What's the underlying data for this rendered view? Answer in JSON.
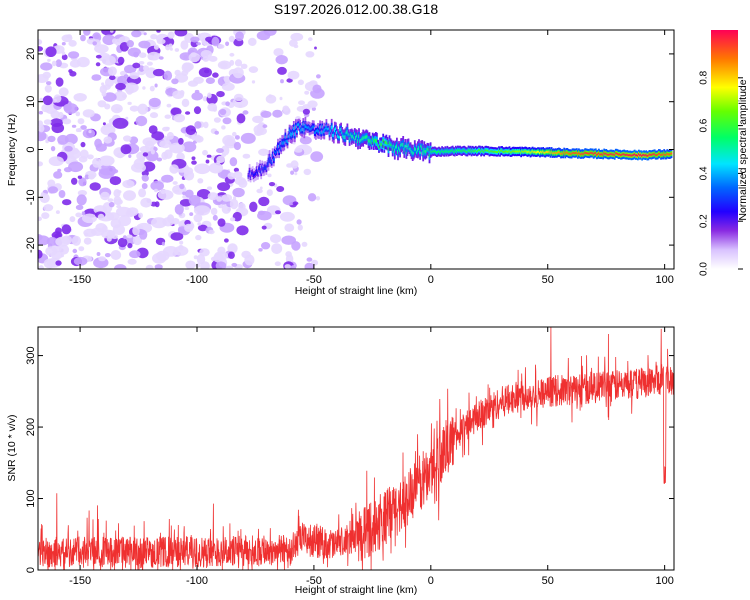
{
  "title": "S197.2026.012.00.38.G18",
  "chart_data": [
    {
      "type": "heatmap",
      "panel": "spectrogram",
      "xlabel": "Height of straight line (km)",
      "ylabel": "Frequency (Hz)",
      "xlim": [
        -168,
        104
      ],
      "ylim": [
        -25,
        25
      ],
      "xticks": [
        -150,
        -100,
        -50,
        0,
        50,
        100
      ],
      "yticks": [
        20,
        10,
        0,
        -10,
        -20
      ],
      "xtick_labels": [
        "-150",
        "-100",
        "-50",
        "0",
        "50",
        "100"
      ],
      "ytick_labels": [
        "20",
        "10",
        "0",
        "-10",
        "-20"
      ],
      "colorbar": {
        "label": "Normalized spectral amplitude",
        "range": [
          0,
          1
        ],
        "ticks": [
          0.0,
          0.2,
          0.4,
          0.6,
          0.8
        ],
        "tick_labels": [
          "0.0",
          "0.2",
          "0.4",
          "0.6",
          "0.8"
        ]
      },
      "ridge": {
        "x": [
          -75,
          -70,
          -65,
          -60,
          -55,
          -50,
          -45,
          -40,
          -35,
          -30,
          -25,
          -20,
          -15,
          -10,
          -5,
          0,
          10,
          20,
          30,
          40,
          50,
          60,
          70,
          80,
          90,
          100
        ],
        "freq": [
          -5,
          -3,
          0,
          3.5,
          5,
          4,
          4,
          3.5,
          3,
          2.5,
          1.5,
          1,
          0.5,
          0,
          0,
          -0.5,
          -0.3,
          -0.3,
          -0.4,
          -0.5,
          -0.6,
          -0.8,
          -0.9,
          -1.0,
          -1.2,
          -1.0
        ],
        "amplitude": [
          0.25,
          0.3,
          0.35,
          0.4,
          0.4,
          0.35,
          0.4,
          0.45,
          0.5,
          0.5,
          0.55,
          0.6,
          0.5,
          0.5,
          0.5,
          0.55,
          0.55,
          0.6,
          0.65,
          0.7,
          0.8,
          0.9,
          0.95,
          0.95,
          1.0,
          0.9
        ]
      },
      "noise_region": [
        -168,
        -48
      ]
    },
    {
      "type": "line",
      "panel": "snr",
      "xlabel": "Height of straight line (km)",
      "ylabel": "SNR (10 * v/v)",
      "xlim": [
        -168,
        104
      ],
      "ylim": [
        0,
        340
      ],
      "xticks": [
        -150,
        -100,
        -50,
        0,
        50,
        100
      ],
      "yticks": [
        0,
        100,
        200,
        300
      ],
      "xtick_labels": [
        "-150",
        "-100",
        "-50",
        "0",
        "50",
        "100"
      ],
      "ytick_labels": [
        "0",
        "100",
        "200",
        "300"
      ],
      "color": "#ef3030",
      "trend": {
        "x": [
          -168,
          -150,
          -100,
          -60,
          -55,
          -50,
          -40,
          -30,
          -20,
          -10,
          0,
          5,
          10,
          15,
          20,
          25,
          30,
          40,
          50,
          60,
          70,
          80,
          90,
          100,
          104
        ],
        "y": [
          25,
          25,
          25,
          28,
          45,
          40,
          35,
          50,
          70,
          100,
          140,
          165,
          185,
          200,
          215,
          225,
          235,
          245,
          250,
          252,
          255,
          258,
          262,
          268,
          265
        ]
      },
      "noise_amplitude": 22
    }
  ]
}
